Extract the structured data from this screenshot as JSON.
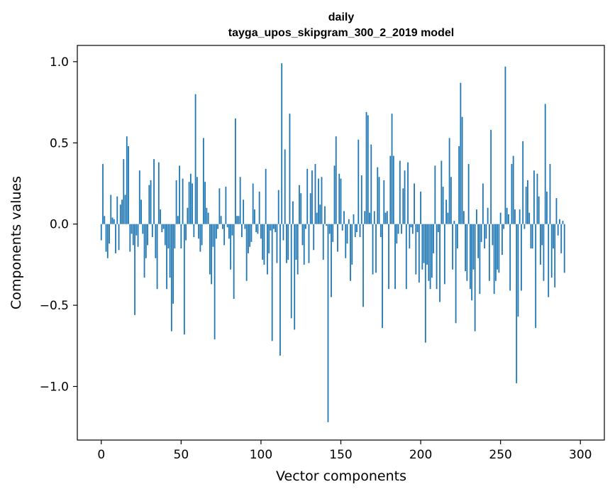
{
  "chart_data": {
    "type": "bar",
    "title_lines": [
      "daily",
      "tayga_upos_skipgram_300_2_2019 model"
    ],
    "xlabel": "Vector components",
    "ylabel": "Components values",
    "xlim": [
      -15,
      315
    ],
    "ylim": [
      -1.33,
      1.1
    ],
    "xticks": [
      0,
      50,
      100,
      150,
      200,
      250,
      300
    ],
    "xtick_labels": [
      "0",
      "50",
      "100",
      "150",
      "200",
      "250",
      "300"
    ],
    "yticks": [
      -1.0,
      -0.5,
      0.0,
      0.5,
      1.0
    ],
    "ytick_labels": [
      "−1.0",
      "−0.5",
      "0.0",
      "0.5",
      "1.0"
    ],
    "bar_color": "#1f77b4",
    "values": [
      -0.1,
      0.37,
      0.05,
      -0.17,
      -0.21,
      -0.12,
      0.18,
      0.04,
      0.03,
      -0.18,
      0.17,
      -0.16,
      0.12,
      0.15,
      0.4,
      0.18,
      0.54,
      0.48,
      -0.17,
      -0.06,
      -0.13,
      -0.56,
      -0.07,
      -0.14,
      0.33,
      0.15,
      -0.06,
      -0.33,
      -0.21,
      -0.13,
      0.24,
      0.27,
      -0.08,
      0.4,
      -0.21,
      -0.4,
      0.38,
      0.09,
      -0.05,
      -0.03,
      -0.13,
      -0.4,
      -0.15,
      -0.33,
      -0.66,
      -0.49,
      -0.15,
      0.27,
      0.05,
      0.36,
      -0.15,
      0.28,
      -0.68,
      -0.1,
      0.1,
      0.26,
      0.31,
      0.25,
      -0.08,
      0.8,
      0.29,
      -0.09,
      -0.17,
      -0.13,
      0.53,
      0.26,
      0.1,
      0.07,
      -0.31,
      -0.37,
      -0.14,
      -0.71,
      -0.09,
      -0.03,
      0.22,
      0.05,
      -0.03,
      -0.13,
      0.23,
      -0.02,
      -0.09,
      -0.28,
      -0.07,
      -0.46,
      0.65,
      0.05,
      0.05,
      0.29,
      -0.08,
      0.15,
      -0.03,
      -0.35,
      -0.18,
      -0.14,
      -0.11,
      0.25,
      0.09,
      -0.05,
      -0.06,
      0.2,
      -0.09,
      -0.22,
      -0.25,
      0.34,
      -0.31,
      -0.18,
      -0.04,
      -0.72,
      -0.03,
      -0.05,
      -0.24,
      0.21,
      -0.81,
      0.99,
      -0.1,
      0.46,
      -0.24,
      -0.22,
      0.68,
      -0.58,
      0.14,
      -0.65,
      -0.22,
      -0.31,
      0.24,
      0.19,
      -0.13,
      -0.25,
      -0.03,
      0.34,
      -0.24,
      0.19,
      0.33,
      -0.16,
      0.37,
      0.07,
      0.28,
      0.12,
      0.29,
      -0.22,
      0.11,
      -0.01,
      -1.22,
      -0.06,
      -0.45,
      -0.11,
      0.36,
      0.54,
      -0.17,
      0.31,
      0.28,
      -0.04,
      0.08,
      -0.21,
      -0.12,
      0.03,
      -0.35,
      -0.25,
      0.06,
      -0.08,
      -0.05,
      0.52,
      -0.08,
      0.3,
      -0.51,
      0.08,
      0.69,
      0.67,
      0.07,
      0.49,
      -0.31,
      0.08,
      -0.3,
      0.35,
      0.29,
      -0.08,
      -0.64,
      0.27,
      0.07,
      0.08,
      -0.4,
      0.42,
      0.68,
      0.42,
      -0.4,
      -0.12,
      -0.06,
      0.39,
      -0.06,
      0.22,
      0.33,
      -0.4,
      0.38,
      -0.15,
      -0.02,
      -0.06,
      0.25,
      -0.31,
      -0.05,
      -0.36,
      0.2,
      -0.28,
      -0.24,
      -0.73,
      -0.25,
      -0.35,
      -0.4,
      -0.33,
      -0.18,
      0.36,
      -0.4,
      -0.05,
      -0.48,
      0.39,
      0.23,
      -0.37,
      0.15,
      0.07,
      0.53,
      0.29,
      -0.28,
      0.02,
      -0.61,
      -0.15,
      0.48,
      0.87,
      0.66,
      0.08,
      -0.29,
      -0.35,
      0.37,
      -0.4,
      -0.47,
      -0.28,
      -0.66,
      0.09,
      -0.21,
      -0.43,
      -0.11,
      0.25,
      -0.15,
      -0.09,
      0.1,
      -0.35,
      0.58,
      -0.13,
      -0.43,
      -0.35,
      -0.28,
      -0.3,
      0.07,
      -0.19,
      -0.03,
      0.97,
      0.1,
      0.06,
      -0.41,
      0.37,
      0.42,
      0.09,
      -0.98,
      -0.57,
      0.09,
      -0.41,
      0.51,
      -0.03,
      0.23,
      0.27,
      0.07,
      -0.15,
      -0.15,
      0.33,
      -0.64,
      0.31,
      0.17,
      -0.25,
      -0.13,
      -0.35,
      0.74,
      0.2,
      -0.45,
      0.37,
      -0.33,
      -0.15,
      -0.39,
      0.16,
      -0.07,
      0.03,
      -0.18,
      0.02,
      -0.3
    ]
  }
}
